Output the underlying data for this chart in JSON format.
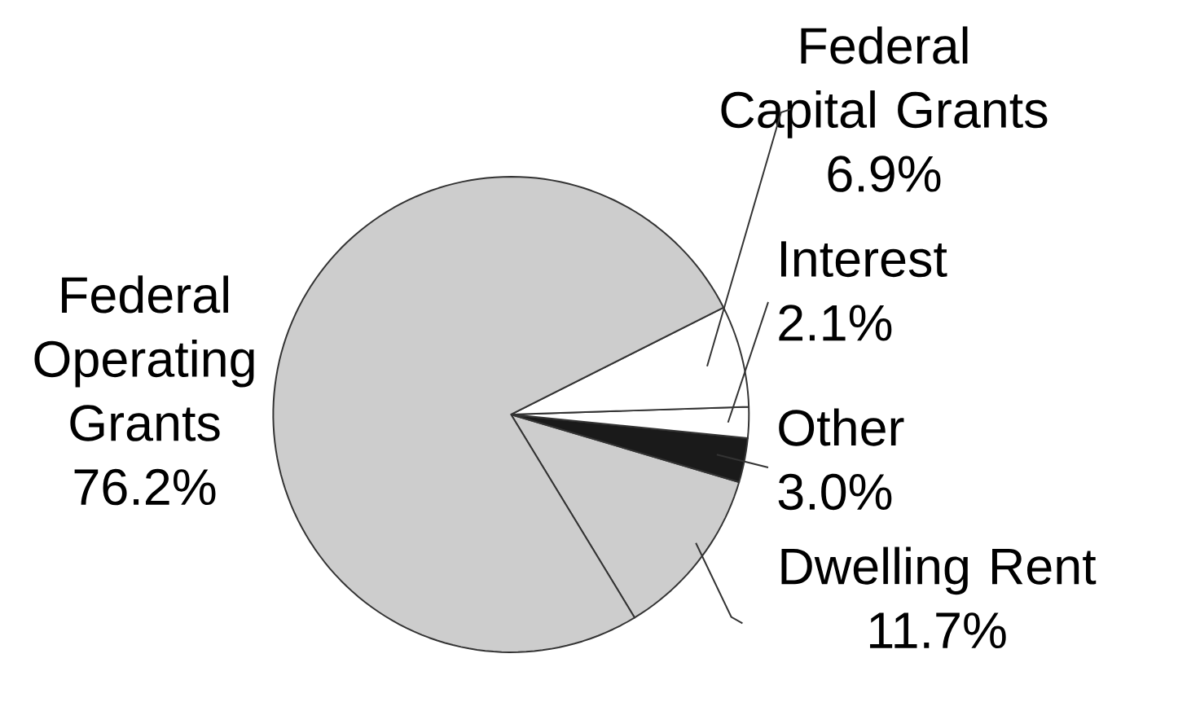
{
  "chart_data": {
    "type": "pie",
    "categories": [
      "Dwelling Rent",
      "Other",
      "Interest",
      "Federal Capital Grants",
      "Federal Operating Grants"
    ],
    "values": [
      11.7,
      3.0,
      2.1,
      6.9,
      76.2
    ],
    "value_labels": [
      "11.7%",
      "3.0%",
      "2.1%",
      "6.9%",
      "76.2%"
    ],
    "colors": [
      "#cdcdcd",
      "#1a1a1a",
      "#ffffff",
      "#ffffff",
      "#cdcdcd"
    ]
  }
}
